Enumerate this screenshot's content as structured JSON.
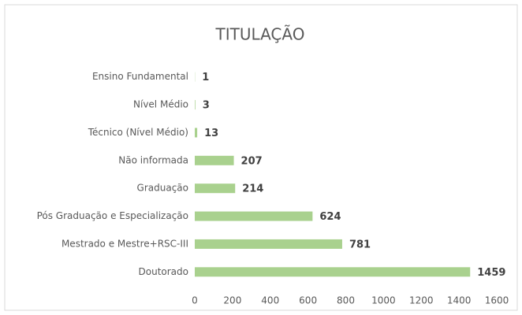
{
  "chart_data": {
    "type": "bar",
    "orientation": "horizontal",
    "title": "TITULAÇÃO",
    "categories": [
      "Ensino Fundamental",
      "Nível Médio",
      "Técnico (Nível Médio)",
      "Não informada",
      "Graduação",
      "Pós Graduação e Especialização",
      "Mestrado e Mestre+RSC-III",
      "Doutorado"
    ],
    "values": [
      1,
      3,
      13,
      207,
      214,
      624,
      781,
      1459
    ],
    "color": "#a9d18e",
    "xlim": [
      0,
      1600
    ],
    "xticks": [
      0,
      200,
      400,
      600,
      800,
      1000,
      1200,
      1400,
      1600
    ],
    "grid": false
  }
}
